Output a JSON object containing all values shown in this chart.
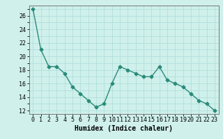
{
  "x": [
    0,
    1,
    2,
    3,
    4,
    5,
    6,
    7,
    8,
    9,
    10,
    11,
    12,
    13,
    14,
    15,
    16,
    17,
    18,
    19,
    20,
    21,
    22,
    23
  ],
  "y": [
    27,
    21,
    18.5,
    18.5,
    17.5,
    15.5,
    14.5,
    13.5,
    12.5,
    13,
    16,
    18.5,
    18,
    17.5,
    17,
    17,
    18.5,
    16.5,
    16,
    15.5,
    14.5,
    13.5,
    13,
    12
  ],
  "line_color": "#2a8a7a",
  "marker": "D",
  "marker_size": 2.5,
  "line_width": 1.0,
  "bg_color": "#cff0eb",
  "grid_color": "#aaddda",
  "xlabel": "Humidex (Indice chaleur)",
  "xlabel_fontsize": 7,
  "tick_fontsize": 6,
  "ylim": [
    11.5,
    27.5
  ],
  "xlim": [
    -0.5,
    23.5
  ],
  "yticks": [
    12,
    14,
    16,
    18,
    20,
    22,
    24,
    26
  ],
  "xticks": [
    0,
    1,
    2,
    3,
    4,
    5,
    6,
    7,
    8,
    9,
    10,
    11,
    12,
    13,
    14,
    15,
    16,
    17,
    18,
    19,
    20,
    21,
    22,
    23
  ]
}
